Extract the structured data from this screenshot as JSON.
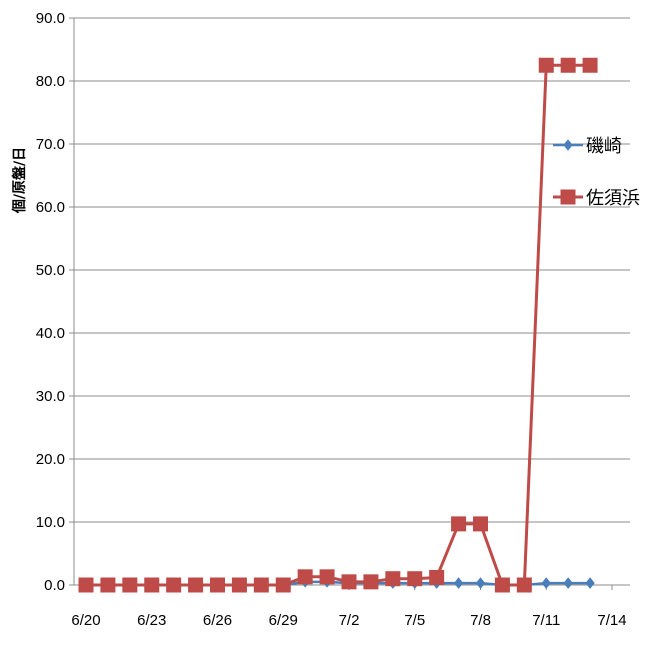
{
  "chart_data": {
    "type": "line",
    "ylabel": "個/原盤/日",
    "ylim": [
      0,
      90
    ],
    "yticks": [
      "0.0",
      "10.0",
      "20.0",
      "30.0",
      "40.0",
      "50.0",
      "60.0",
      "70.0",
      "80.0",
      "90.0"
    ],
    "x_tick_labels": [
      "6/20",
      "6/23",
      "6/26",
      "6/29",
      "7/2",
      "7/5",
      "7/8",
      "7/11",
      "7/14"
    ],
    "x_tick_days": [
      0,
      3,
      6,
      9,
      12,
      15,
      18,
      21,
      24
    ],
    "xlim_days": [
      0,
      24
    ],
    "grid": "horizontal",
    "legend_position": "right",
    "series": [
      {
        "name": "磯崎",
        "color": "#4a7ebb",
        "marker": "diamond",
        "x_days": [
          0,
          1,
          2,
          3,
          4,
          5,
          6,
          7,
          8,
          9,
          10,
          11,
          12,
          13,
          14,
          15,
          16,
          17,
          18,
          19,
          20,
          21,
          22,
          23
        ],
        "values": [
          0,
          0,
          0,
          0,
          0,
          0,
          0,
          0,
          0,
          0,
          0.5,
          0.5,
          0.3,
          0.3,
          0.3,
          0.3,
          0.3,
          0.3,
          0.3,
          0,
          0,
          0.3,
          0.3,
          0.3
        ]
      },
      {
        "name": "佐須浜",
        "color": "#be4b48",
        "marker": "square",
        "x_days": [
          0,
          1,
          2,
          3,
          4,
          5,
          6,
          7,
          8,
          9,
          10,
          11,
          12,
          13,
          14,
          15,
          16,
          17,
          18,
          19,
          20,
          21,
          22,
          23
        ],
        "values": [
          0,
          0,
          0,
          0,
          0,
          0,
          0,
          0,
          0,
          0,
          1.3,
          1.3,
          0.5,
          0.5,
          1.0,
          1.0,
          1.2,
          9.7,
          9.7,
          0,
          0,
          82.5,
          82.5,
          82.5
        ]
      }
    ]
  }
}
